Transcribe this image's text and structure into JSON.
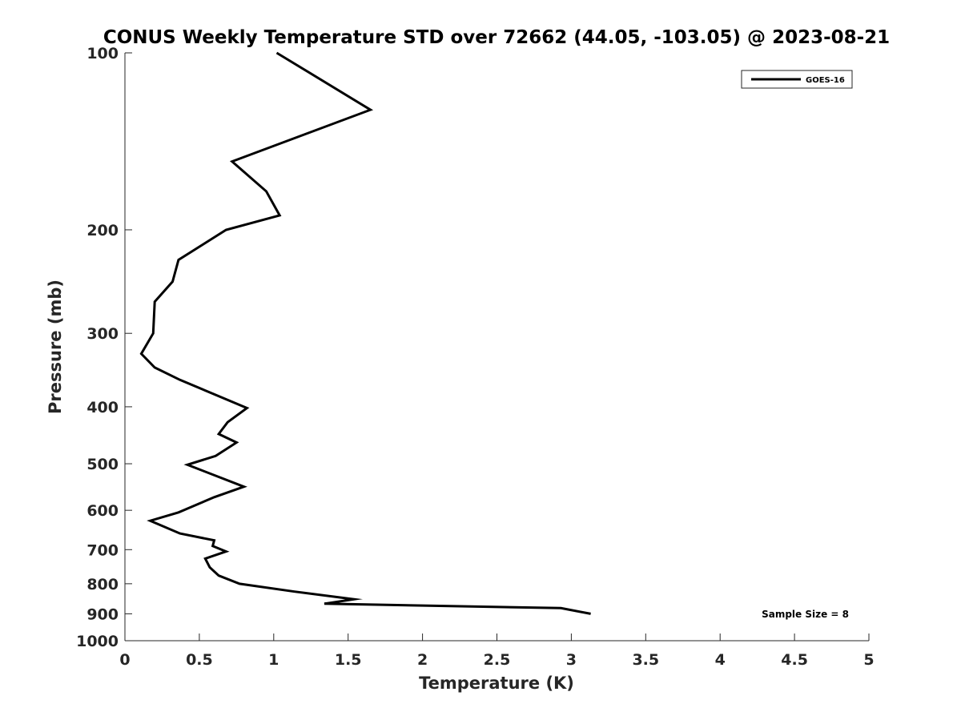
{
  "chart_data": {
    "type": "line",
    "title": "CONUS Weekly Temperature STD over 72662 (44.05, -103.05) @ 2023-08-21",
    "xlabel": "Temperature (K)",
    "ylabel": "Pressure (mb)",
    "xlim": [
      0,
      5
    ],
    "ylim": [
      100,
      1000
    ],
    "y_scale": "log",
    "y_reversed": true,
    "grid": false,
    "legend_position": "top-right",
    "xticks": [
      0,
      0.5,
      1,
      1.5,
      2,
      2.5,
      3,
      3.5,
      4,
      4.5,
      5
    ],
    "xtick_labels": [
      "0",
      "0.5",
      "1",
      "1.5",
      "2",
      "2.5",
      "3",
      "3.5",
      "4",
      "4.5",
      "5"
    ],
    "yticks": [
      100,
      200,
      300,
      400,
      500,
      600,
      700,
      800,
      900,
      1000
    ],
    "ytick_labels": [
      "100",
      "200",
      "300",
      "400",
      "500",
      "600",
      "700",
      "800",
      "900",
      "1000"
    ],
    "annotation": "Sample Size = 8",
    "series": [
      {
        "name": "GOES-16",
        "color": "#000000",
        "points": [
          {
            "x": 1.02,
            "p": 100
          },
          {
            "x": 1.65,
            "p": 125
          },
          {
            "x": 0.72,
            "p": 153
          },
          {
            "x": 0.95,
            "p": 172
          },
          {
            "x": 1.04,
            "p": 189
          },
          {
            "x": 0.68,
            "p": 200
          },
          {
            "x": 0.36,
            "p": 225
          },
          {
            "x": 0.32,
            "p": 245
          },
          {
            "x": 0.2,
            "p": 265
          },
          {
            "x": 0.19,
            "p": 300
          },
          {
            "x": 0.11,
            "p": 325
          },
          {
            "x": 0.2,
            "p": 343
          },
          {
            "x": 0.37,
            "p": 360
          },
          {
            "x": 0.82,
            "p": 402
          },
          {
            "x": 0.69,
            "p": 425
          },
          {
            "x": 0.63,
            "p": 445
          },
          {
            "x": 0.75,
            "p": 460
          },
          {
            "x": 0.61,
            "p": 485
          },
          {
            "x": 0.42,
            "p": 502
          },
          {
            "x": 0.8,
            "p": 547
          },
          {
            "x": 0.6,
            "p": 570
          },
          {
            "x": 0.36,
            "p": 605
          },
          {
            "x": 0.17,
            "p": 625
          },
          {
            "x": 0.37,
            "p": 657
          },
          {
            "x": 0.6,
            "p": 675
          },
          {
            "x": 0.59,
            "p": 690
          },
          {
            "x": 0.68,
            "p": 705
          },
          {
            "x": 0.54,
            "p": 725
          },
          {
            "x": 0.57,
            "p": 750
          },
          {
            "x": 0.63,
            "p": 775
          },
          {
            "x": 0.77,
            "p": 800
          },
          {
            "x": 1.14,
            "p": 825
          },
          {
            "x": 1.54,
            "p": 850
          },
          {
            "x": 1.34,
            "p": 865
          },
          {
            "x": 2.93,
            "p": 880
          },
          {
            "x": 3.13,
            "p": 900
          }
        ]
      }
    ]
  }
}
